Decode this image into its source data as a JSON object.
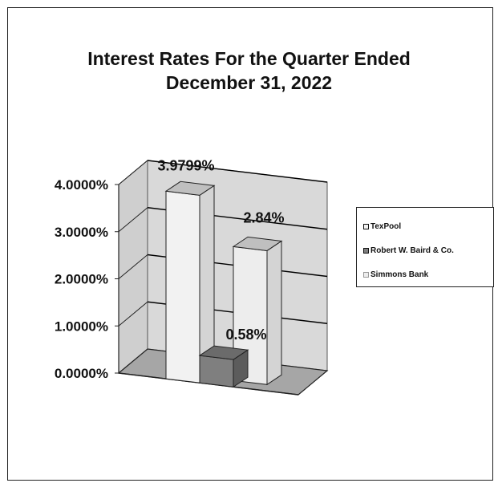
{
  "chart_data": {
    "type": "bar",
    "title_lines": [
      "Interest Rates For the Quarter Ended",
      "December 31, 2022"
    ],
    "categories": [
      "TexPool",
      "Robert W. Baird & Co.",
      "Simmons Bank"
    ],
    "values": [
      3.9799,
      0.58,
      2.84
    ],
    "value_labels": [
      "3.9799%",
      "0.58%",
      "2.84%"
    ],
    "y_ticks": [
      "0.0000%",
      "1.0000%",
      "2.0000%",
      "3.0000%",
      "4.0000%"
    ],
    "ylim": [
      0,
      4
    ],
    "grid": true,
    "legend_position": "right",
    "three_d": true,
    "colors": [
      "#f2f2f2",
      "#7f7f7f",
      "#ededed"
    ],
    "wall_color": "#d9d9d9",
    "floor_color": "#a6a6a6"
  }
}
